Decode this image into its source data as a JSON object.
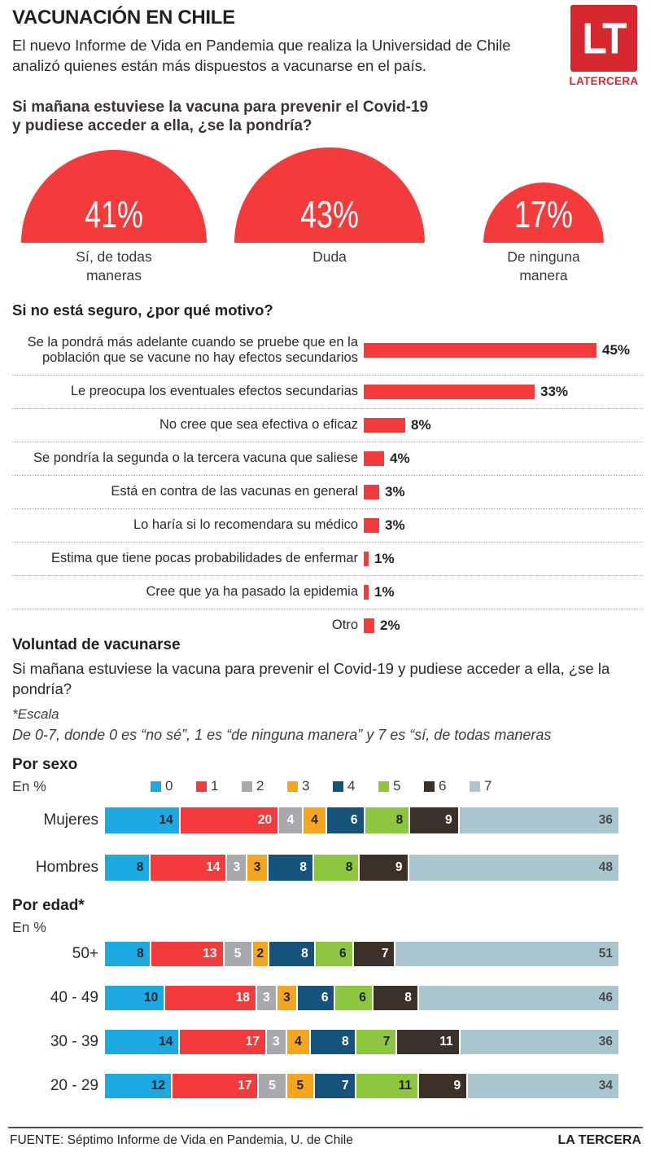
{
  "header": {
    "title": "VACUNACIÓN EN CHILE",
    "intro": "El nuevo Informe de Vida en Pandemia que realiza la Universidad de Chile analizó quienes están más dispuestos a vacunarse en el país.",
    "logo_initials": "LT",
    "logo_brand": "LATERCERA"
  },
  "question": {
    "line1": "Si mañana estuviese la vacuna para prevenir el Covid-19",
    "line2": "y pudiese acceder a ella, ¿se la pondría?"
  },
  "voluntad": {
    "heading": "Voluntad de vacunarse",
    "text": "Si mañana estuviese la vacuna para prevenir el Covid-19 y pudiese acceder a ella, ¿se la pondría?",
    "escala_label": "*Escala",
    "escala_text": "De 0-7, donde 0 es “no sé”, 1 es “de ninguna manera” y 7 es “sí, de todas maneras"
  },
  "colors": {
    "chart_red": "#f43b3b",
    "logo_red": "#d7282f",
    "text_dark": "#231f20"
  },
  "segment_styles": [
    {
      "bg": "#1ca8e0",
      "text": "#16252e"
    },
    {
      "bg": "#f43b3b",
      "text": "#ffffff"
    },
    {
      "bg": "#a7a9ac",
      "text": "#ffffff"
    },
    {
      "bg": "#f5a61d",
      "text": "#231f20"
    },
    {
      "bg": "#16537b",
      "text": "#ffffff"
    },
    {
      "bg": "#8dc63f",
      "text": "#231f20"
    },
    {
      "bg": "#3b3128",
      "text": "#ffffff"
    },
    {
      "bg": "#a9c5ce",
      "text": "#4b4b4d"
    }
  ],
  "chart_data": [
    {
      "type": "pie",
      "variant": "semicircle-area-proportional",
      "title": "Si mañana estuviese la vacuna para prevenir el Covid-19 y pudiese acceder a ella, ¿se la pondría?",
      "unit": "%",
      "points": [
        {
          "label": "Sí, de todas maneras",
          "value": 41
        },
        {
          "label": "Duda",
          "value": 43
        },
        {
          "label": "De ninguna manera",
          "value": 17
        }
      ]
    },
    {
      "type": "bar",
      "orientation": "horizontal",
      "title": "Si no está seguro, ¿por qué motivo?",
      "unit": "%",
      "xlim": [
        0,
        45
      ],
      "categories": [
        "Se la pondrá más adelante cuando se pruebe que en la población que se vacune no hay efectos secundarios",
        "Le preocupa los eventuales efectos secundarias",
        "No cree que sea efectiva o eficaz",
        "Se pondría la segunda o la tercera vacuna que saliese",
        "Está en contra de las vacunas en general",
        "Lo haría si lo recomendara su médico",
        "Estima que tiene pocas probabilidades de enfermar",
        "Cree que ya ha pasado la epidemia",
        "Otro"
      ],
      "values": [
        45,
        33,
        8,
        4,
        3,
        3,
        1,
        1,
        2
      ]
    },
    {
      "type": "bar",
      "variant": "stacked-horizontal",
      "title": "Por sexo",
      "subtitle": "En %",
      "legend": [
        "0",
        "1",
        "2",
        "3",
        "4",
        "5",
        "6",
        "7"
      ],
      "categories": [
        "Mujeres",
        "Hombres"
      ],
      "series_by_row": [
        [
          14,
          20,
          4,
          4,
          6,
          8,
          9,
          36
        ],
        [
          8,
          14,
          3,
          3,
          8,
          8,
          9,
          48
        ]
      ]
    },
    {
      "type": "bar",
      "variant": "stacked-horizontal",
      "title": "Por edad*",
      "subtitle": "En %",
      "legend": [
        "0",
        "1",
        "2",
        "3",
        "4",
        "5",
        "6",
        "7"
      ],
      "categories": [
        "50+",
        "40 - 49",
        "30 - 39",
        "20 - 29"
      ],
      "series_by_row": [
        [
          8,
          13,
          5,
          2,
          8,
          6,
          7,
          51
        ],
        [
          10,
          18,
          3,
          3,
          6,
          6,
          8,
          46
        ],
        [
          14,
          17,
          3,
          4,
          8,
          7,
          11,
          36
        ],
        [
          12,
          17,
          5,
          5,
          7,
          11,
          9,
          34
        ]
      ]
    }
  ],
  "footer": {
    "source": "FUENTE:  Séptimo Informe de Vida en Pandemia, U. de Chile",
    "brand": "LA TERCERA"
  }
}
